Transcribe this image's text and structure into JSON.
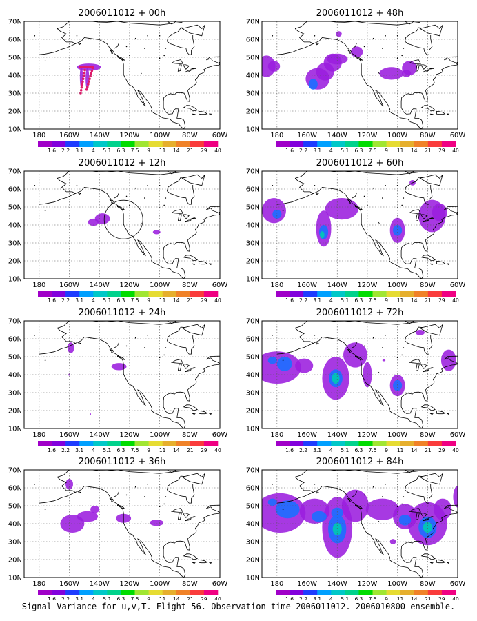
{
  "lat_labels": [
    "70N",
    "60N",
    "50N",
    "40N",
    "30N",
    "20N",
    "10N"
  ],
  "lon_labels": [
    "180",
    "160W",
    "140W",
    "120W",
    "100W",
    "80W",
    "60W"
  ],
  "colorbar": {
    "colors": [
      "#a000c8",
      "#8200dc",
      "#1e3cff",
      "#00a0ff",
      "#00c8c8",
      "#00d28c",
      "#00dc00",
      "#a0e632",
      "#e6dc32",
      "#e6af2d",
      "#f08228",
      "#fa3c3c",
      "#f00082"
    ],
    "labels": [
      "1.6",
      "2.2",
      "3.1",
      "4",
      "5.1",
      "6.3",
      "7.5",
      "9",
      "11",
      "14",
      "21",
      "29",
      "40"
    ]
  },
  "panels": [
    {
      "title": "2006011012 + 00h",
      "forecast_hour": 0
    },
    {
      "title": "2006011012 + 48h",
      "forecast_hour": 48
    },
    {
      "title": "2006011012 + 12h",
      "forecast_hour": 12
    },
    {
      "title": "2006011012 + 60h",
      "forecast_hour": 60
    },
    {
      "title": "2006011012 + 24h",
      "forecast_hour": 24
    },
    {
      "title": "2006011012 + 72h",
      "forecast_hour": 72
    },
    {
      "title": "2006011012 + 36h",
      "forecast_hour": 36
    },
    {
      "title": "2006011012 + 84h",
      "forecast_hour": 84
    }
  ],
  "caption": "Signal Variance for u,v,T. Flight 56. Observation time 2006011012. 2006010800 ensemble."
}
